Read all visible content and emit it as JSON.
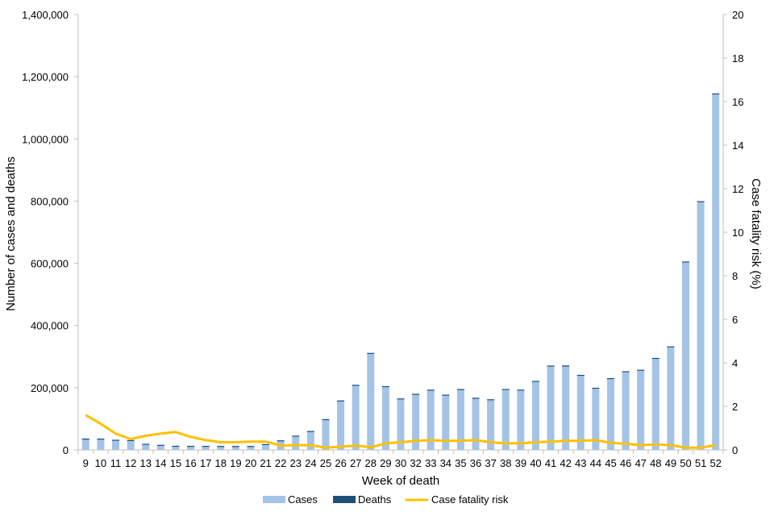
{
  "chart_data": {
    "type": "bar",
    "categories": [
      "9",
      "10",
      "11",
      "12",
      "13",
      "14",
      "15",
      "16",
      "17",
      "18",
      "19",
      "20",
      "21",
      "22",
      "23",
      "24",
      "25",
      "26",
      "27",
      "28",
      "29",
      "30",
      "32",
      "33",
      "34",
      "35",
      "36",
      "37",
      "38",
      "39",
      "40",
      "41",
      "42",
      "43",
      "44",
      "45",
      "46",
      "47",
      "48",
      "49",
      "50",
      "51",
      "52"
    ],
    "series": [
      {
        "name": "Cases",
        "type": "bar",
        "axis": "left",
        "values": [
          33000,
          33000,
          30000,
          30000,
          18000,
          15000,
          12000,
          12000,
          12000,
          12000,
          12000,
          12000,
          18000,
          30000,
          45000,
          60000,
          98000,
          158000,
          208000,
          310000,
          203000,
          163000,
          178000,
          191000,
          175000,
          193000,
          165000,
          160000,
          193000,
          191000,
          219000,
          268000,
          268000,
          238000,
          197000,
          228000,
          250000,
          255000,
          293000,
          330000,
          603000,
          797000,
          1143000
        ]
      },
      {
        "name": "Deaths",
        "type": "bar",
        "axis": "left",
        "values": [
          3500,
          3300,
          2500,
          1700,
          1500,
          1400,
          1200,
          1000,
          900,
          700,
          600,
          600,
          700,
          700,
          700,
          800,
          800,
          1000,
          1200,
          1800,
          2000,
          2400,
          2400,
          2600,
          2600,
          2600,
          2600,
          2800,
          2800,
          2800,
          2800,
          3200,
          3500,
          3200,
          2800,
          2800,
          2800,
          2800,
          2800,
          2800,
          2800,
          2800,
          3200
        ]
      },
      {
        "name": "Case fatality risk",
        "type": "line",
        "axis": "right",
        "values": [
          1.6,
          1.2,
          0.75,
          0.5,
          0.65,
          0.75,
          0.82,
          0.6,
          0.45,
          0.35,
          0.35,
          0.38,
          0.38,
          0.2,
          0.22,
          0.22,
          0.1,
          0.15,
          0.2,
          0.12,
          0.3,
          0.35,
          0.42,
          0.45,
          0.42,
          0.42,
          0.45,
          0.35,
          0.3,
          0.3,
          0.35,
          0.38,
          0.42,
          0.42,
          0.45,
          0.32,
          0.28,
          0.22,
          0.25,
          0.22,
          0.1,
          0.1,
          0.22
        ]
      }
    ],
    "xlabel": "Week of death",
    "ylabel": "Number of cases and deaths",
    "y2label": "Case fatality risk (%)",
    "ylim": [
      0,
      1400000
    ],
    "yticks": [
      "0",
      "200,000",
      "400,000",
      "600,000",
      "800,000",
      "1,000,000",
      "1,200,000",
      "1,400,000"
    ],
    "y2lim": [
      0,
      20
    ],
    "y2ticks": [
      "0",
      "2",
      "4",
      "6",
      "8",
      "10",
      "12",
      "14",
      "16",
      "18",
      "20"
    ],
    "legend_position": "bottom",
    "grid": false,
    "colors": {
      "cases": "#a4c3e6",
      "deaths": "#1f4e79",
      "cfr": "#ffc000",
      "axis": "#bfbfbf"
    }
  }
}
